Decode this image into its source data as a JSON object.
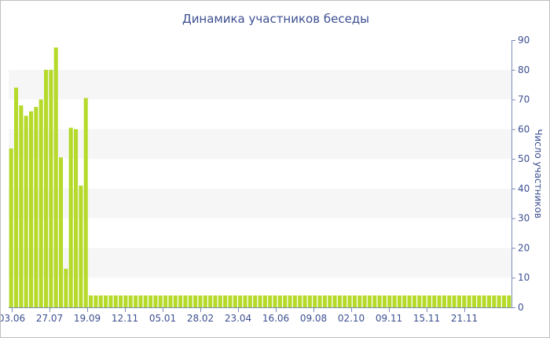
{
  "chart_data": {
    "type": "bar",
    "title": "Динамика участников беседы",
    "xlabel": "",
    "ylabel": "Число участников",
    "ylim": [
      0,
      90
    ],
    "yticks": [
      0,
      10,
      20,
      30,
      40,
      50,
      60,
      70,
      80,
      90
    ],
    "y_axis_side": "right",
    "grid": "alternating horizontal bands",
    "bar_color": "#b6da2a",
    "band_color": "#f6f6f6",
    "text_color": "#3c4f91",
    "x_tick_labels": [
      "03.06",
      "27.07",
      "19.09",
      "12.11",
      "05.01",
      "28.02",
      "23.04",
      "16.06",
      "09.08",
      "02.10",
      "09.11",
      "15.11",
      "21.11"
    ],
    "values": [
      53.5,
      74,
      68,
      64.5,
      66,
      67.5,
      70,
      80,
      80,
      87.5,
      50.5,
      13,
      60.5,
      60,
      41,
      70.5,
      4,
      4,
      4,
      4,
      4,
      4,
      4,
      4,
      4,
      4,
      4,
      4,
      4,
      4,
      4,
      4,
      4,
      4,
      4,
      4,
      4,
      4,
      4,
      4,
      4,
      4,
      4,
      4,
      4,
      4,
      4,
      4,
      4,
      4,
      4,
      4,
      4,
      4,
      4,
      4,
      4,
      4,
      4,
      4,
      4,
      4,
      4,
      4,
      4,
      4,
      4,
      4,
      4,
      4,
      4,
      4,
      4,
      4,
      4,
      4,
      4,
      4,
      4,
      4,
      4,
      4,
      4,
      4,
      4,
      4,
      4,
      4,
      4,
      4,
      4,
      4,
      4,
      4,
      4,
      4,
      4,
      4,
      4,
      4,
      4
    ]
  }
}
